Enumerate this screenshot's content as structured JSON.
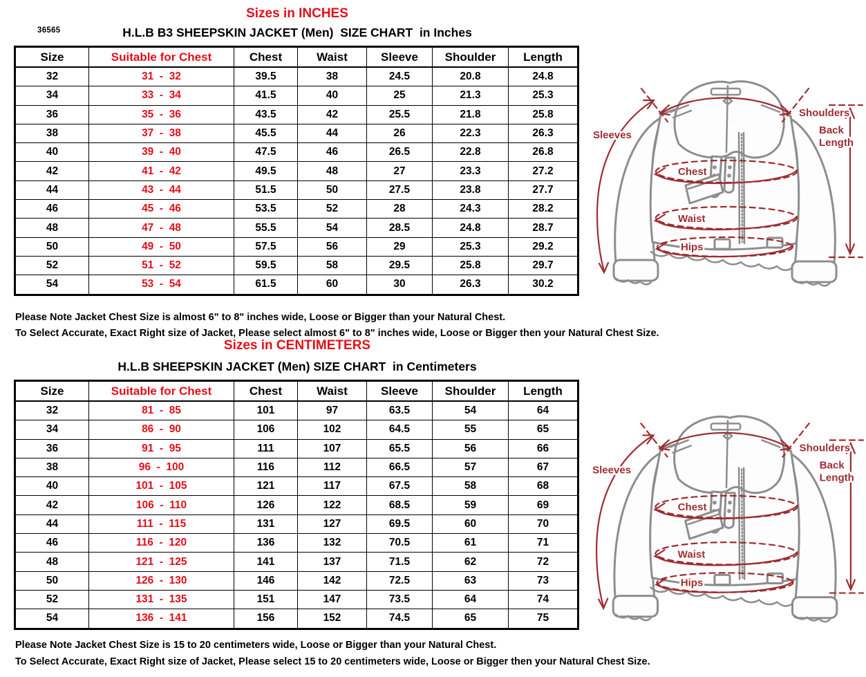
{
  "product_code": "36565",
  "colors": {
    "accent_red": "#e30e18",
    "diagram_red": "#9e2c30",
    "sketch_gray": "#8d8d8d"
  },
  "inches": {
    "section_title": "Sizes in INCHES",
    "table_title": "H.L.B B3 SHEEPSKIN JACKET (Men)  SIZE CHART  in Inches",
    "table": {
      "headers": [
        "Size",
        "Suitable for Chest",
        "Chest",
        "Waist",
        "Sleeve",
        "Shoulder",
        "Length"
      ],
      "rows": [
        [
          "32",
          "31  -  32",
          "39.5",
          "38",
          "24.5",
          "20.8",
          "24.8"
        ],
        [
          "34",
          "33  -  34",
          "41.5",
          "40",
          "25",
          "21.3",
          "25.3"
        ],
        [
          "36",
          "35  -  36",
          "43.5",
          "42",
          "25.5",
          "21.8",
          "25.8"
        ],
        [
          "38",
          "37  -  38",
          "45.5",
          "44",
          "26",
          "22.3",
          "26.3"
        ],
        [
          "40",
          "39  -  40",
          "47.5",
          "46",
          "26.5",
          "22.8",
          "26.8"
        ],
        [
          "42",
          "41  -  42",
          "49.5",
          "48",
          "27",
          "23.3",
          "27.2"
        ],
        [
          "44",
          "43  -  44",
          "51.5",
          "50",
          "27.5",
          "23.8",
          "27.7"
        ],
        [
          "46",
          "45  -  46",
          "53.5",
          "52",
          "28",
          "24.3",
          "28.2"
        ],
        [
          "48",
          "47  -  48",
          "55.5",
          "54",
          "28.5",
          "24.8",
          "28.7"
        ],
        [
          "50",
          "49  -  50",
          "57.5",
          "56",
          "29",
          "25.3",
          "29.2"
        ],
        [
          "52",
          "51  -  52",
          "59.5",
          "58",
          "29.5",
          "25.8",
          "29.7"
        ],
        [
          "54",
          "53  -  54",
          "61.5",
          "60",
          "30",
          "26.3",
          "30.2"
        ]
      ]
    },
    "notes": [
      "Please Note Jacket Chest Size is almost 6\" to 8\" inches wide, Loose or Bigger than your Natural Chest.",
      "To Select Accurate, Exact Right size of Jacket, Please select almost 6\" to 8\" inches wide, Loose or Bigger then your Natural Chest Size."
    ]
  },
  "centimeters": {
    "section_title": "Sizes in CENTIMETERS",
    "table_title": "H.L.B SHEEPSKIN JACKET (Men) SIZE CHART  in Centimeters",
    "table": {
      "headers": [
        "Size",
        "Suitable for Chest",
        "Chest",
        "Waist",
        "Sleeve",
        "Shoulder",
        "Length"
      ],
      "rows": [
        [
          "32",
          "81  -  85",
          "101",
          "97",
          "63.5",
          "54",
          "64"
        ],
        [
          "34",
          "86  -  90",
          "106",
          "102",
          "64.5",
          "55",
          "65"
        ],
        [
          "36",
          "91  -  95",
          "111",
          "107",
          "65.5",
          "56",
          "66"
        ],
        [
          "38",
          "96  -  100",
          "116",
          "112",
          "66.5",
          "57",
          "67"
        ],
        [
          "40",
          "101  -  105",
          "121",
          "117",
          "67.5",
          "58",
          "68"
        ],
        [
          "42",
          "106  -  110",
          "126",
          "122",
          "68.5",
          "59",
          "69"
        ],
        [
          "44",
          "111  -  115",
          "131",
          "127",
          "69.5",
          "60",
          "70"
        ],
        [
          "46",
          "116  -  120",
          "136",
          "132",
          "70.5",
          "61",
          "71"
        ],
        [
          "48",
          "121  -  125",
          "141",
          "137",
          "71.5",
          "62",
          "72"
        ],
        [
          "50",
          "126  -  130",
          "146",
          "142",
          "72.5",
          "63",
          "73"
        ],
        [
          "52",
          "131  -  135",
          "151",
          "147",
          "73.5",
          "64",
          "74"
        ],
        [
          "54",
          "136  -  141",
          "156",
          "152",
          "74.5",
          "65",
          "75"
        ]
      ]
    },
    "notes": [
      "Please Note Jacket Chest Size is 15 to 20 centimeters wide, Loose or Bigger than your Natural Chest.",
      "To Select Accurate, Exact Right size of Jacket, Please select 15 to 20 centimeters wide, Loose or Bigger then your Natural Chest Size."
    ]
  },
  "diagram_labels": {
    "sleeves": "Sleeves",
    "shoulders": "Shoulders",
    "back_line1": "Back",
    "back_line2": "Length",
    "chest": "Chest",
    "waist": "Waist",
    "hips": "Hips"
  }
}
